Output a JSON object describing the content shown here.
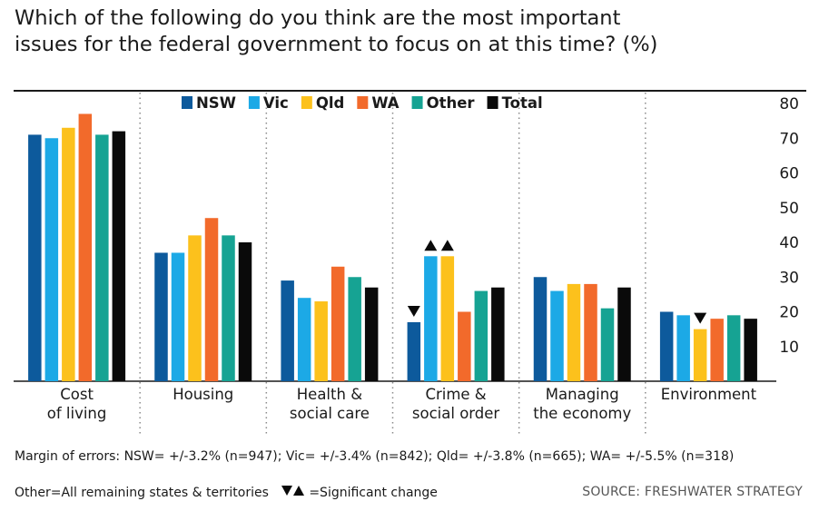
{
  "chart_data": {
    "type": "bar",
    "title_lines": [
      "Which of the following do you think are the most important",
      "issues for the federal government to focus on at this time? (%)"
    ],
    "categories": [
      [
        "Cost",
        "of living"
      ],
      [
        "Housing"
      ],
      [
        "Health &",
        "social care"
      ],
      [
        "Crime &",
        "social order"
      ],
      [
        "Managing",
        "the economy"
      ],
      [
        "Environment"
      ]
    ],
    "series": [
      {
        "name": "NSW",
        "color": "#0d5a9c",
        "values": [
          71,
          37,
          29,
          17,
          30,
          20
        ]
      },
      {
        "name": "Vic",
        "color": "#1ca9e6",
        "values": [
          70,
          37,
          24,
          36,
          26,
          19
        ]
      },
      {
        "name": "Qld",
        "color": "#fcc11c",
        "values": [
          73,
          42,
          23,
          36,
          28,
          15
        ]
      },
      {
        "name": "WA",
        "color": "#f26a2b",
        "values": [
          77,
          47,
          33,
          20,
          28,
          18
        ]
      },
      {
        "name": "Other",
        "color": "#16a393",
        "values": [
          71,
          42,
          30,
          26,
          21,
          19
        ]
      },
      {
        "name": "Total",
        "color": "#0a0a0a",
        "values": [
          72,
          40,
          27,
          27,
          27,
          18
        ]
      }
    ],
    "significant_changes": [
      {
        "category": 3,
        "series": 0,
        "direction": "down"
      },
      {
        "category": 3,
        "series": 1,
        "direction": "up"
      },
      {
        "category": 3,
        "series": 2,
        "direction": "up"
      },
      {
        "category": 5,
        "series": 2,
        "direction": "down"
      }
    ],
    "y_ticks": [
      10,
      20,
      30,
      40,
      50,
      60,
      70,
      80
    ],
    "ylim": [
      0,
      80
    ],
    "legend_position": "top",
    "grid": false
  },
  "notes": {
    "margin_of_error": "Margin of errors: NSW= +/-3.2% (n=947); Vic= +/-3.4% (n=842); Qld= +/-3.8% (n=665); WA= +/-5.5% (n=318)",
    "other_definition": "Other=All remaining states & territories",
    "significant_change_label": "=Significant change",
    "source": "SOURCE: FRESHWATER STRATEGY"
  }
}
